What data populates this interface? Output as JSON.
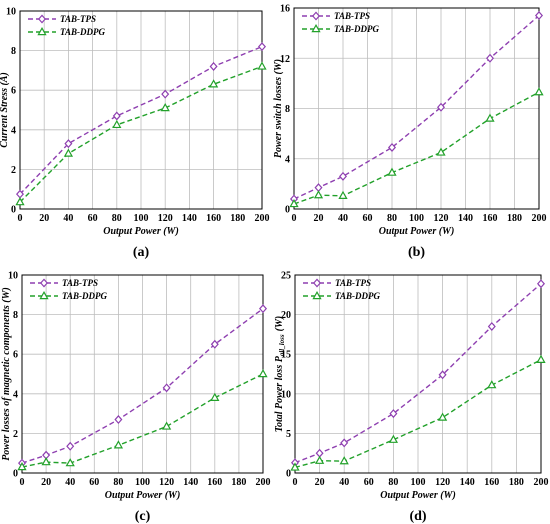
{
  "colors": {
    "tps": "#8e3fb0",
    "ddpg": "#22a12a",
    "grid": "#bdbdbd",
    "axis": "#000000"
  },
  "chart_data": [
    {
      "type": "line",
      "panel": "(a)",
      "xlabel": "Output Power (W)",
      "ylabel": "Current Stress (A)",
      "xlim": [
        0,
        200
      ],
      "ylim": [
        0,
        10
      ],
      "xticks": [
        "0",
        "20",
        "40",
        "60",
        "80",
        "100",
        "120",
        "140",
        "160",
        "180",
        "200"
      ],
      "yticks": [
        "0",
        "2",
        "4",
        "6",
        "8",
        "10"
      ],
      "grid": true,
      "legend": "top-left",
      "series": [
        {
          "name": "TAB-TPS",
          "marker": "diamond",
          "x": [
            0,
            40,
            80,
            120,
            160,
            200
          ],
          "y": [
            0.75,
            3.3,
            4.7,
            5.8,
            7.2,
            8.2
          ]
        },
        {
          "name": "TAB-DDPG",
          "marker": "triangle",
          "x": [
            0,
            40,
            80,
            120,
            160,
            200
          ],
          "y": [
            0.35,
            2.8,
            4.25,
            5.1,
            6.3,
            7.2
          ]
        }
      ]
    },
    {
      "type": "line",
      "panel": "(b)",
      "xlabel": "Output Power (W)",
      "ylabel": "Power switch losses (W)",
      "xlim": [
        0,
        200
      ],
      "ylim": [
        0,
        16
      ],
      "xticks": [
        "0",
        "20",
        "40",
        "60",
        "80",
        "100",
        "120",
        "140",
        "160",
        "180",
        "200"
      ],
      "yticks": [
        "0",
        "4",
        "8",
        "12",
        "16"
      ],
      "grid": true,
      "legend": "top-left",
      "series": [
        {
          "name": "TAB-TPS",
          "marker": "diamond",
          "x": [
            0,
            20,
            40,
            80,
            120,
            160,
            200
          ],
          "y": [
            0.8,
            1.7,
            2.6,
            4.9,
            8.1,
            12.0,
            15.4
          ]
        },
        {
          "name": "TAB-DDPG",
          "marker": "triangle",
          "x": [
            0,
            20,
            40,
            80,
            120,
            160,
            200
          ],
          "y": [
            0.4,
            1.1,
            1.05,
            2.9,
            4.5,
            7.2,
            9.3
          ]
        }
      ]
    },
    {
      "type": "line",
      "panel": "(c)",
      "xlabel": "Output Power (W)",
      "ylabel": "Power losses of magnetic components (W)",
      "xlim": [
        0,
        200
      ],
      "ylim": [
        0,
        10
      ],
      "xticks": [
        "0",
        "20",
        "40",
        "60",
        "80",
        "100",
        "120",
        "140",
        "160",
        "180",
        "200"
      ],
      "yticks": [
        "0",
        "2",
        "4",
        "6",
        "8",
        "10"
      ],
      "grid": true,
      "legend": "top-left",
      "series": [
        {
          "name": "TAB-TPS",
          "marker": "diamond",
          "x": [
            0,
            20,
            40,
            80,
            120,
            160,
            200
          ],
          "y": [
            0.5,
            0.9,
            1.35,
            2.7,
            4.3,
            6.5,
            8.3
          ]
        },
        {
          "name": "TAB-DDPG",
          "marker": "triangle",
          "x": [
            0,
            20,
            40,
            80,
            120,
            160,
            200
          ],
          "y": [
            0.3,
            0.55,
            0.5,
            1.4,
            2.35,
            3.8,
            5.0
          ]
        }
      ]
    },
    {
      "type": "line",
      "panel": "(d)",
      "xlabel": "Output Power (W)",
      "ylabel_main": "Total Power loss P",
      "ylabel_sub": "all_loss",
      "ylabel_unit": "(W)",
      "xlim": [
        0,
        200
      ],
      "ylim": [
        0,
        25
      ],
      "xticks": [
        "0",
        "20",
        "40",
        "60",
        "80",
        "100",
        "120",
        "140",
        "160",
        "180",
        "200"
      ],
      "yticks": [
        "0",
        "5",
        "10",
        "15",
        "20",
        "25"
      ],
      "grid": true,
      "legend": "top-left",
      "series": [
        {
          "name": "TAB-TPS",
          "marker": "diamond",
          "x": [
            0,
            20,
            40,
            80,
            120,
            160,
            200
          ],
          "y": [
            1.3,
            2.5,
            3.8,
            7.5,
            12.4,
            18.5,
            23.9
          ]
        },
        {
          "name": "TAB-DDPG",
          "marker": "triangle",
          "x": [
            0,
            20,
            40,
            80,
            120,
            160,
            200
          ],
          "y": [
            0.7,
            1.55,
            1.5,
            4.2,
            7.0,
            11.1,
            14.3
          ]
        }
      ]
    }
  ]
}
